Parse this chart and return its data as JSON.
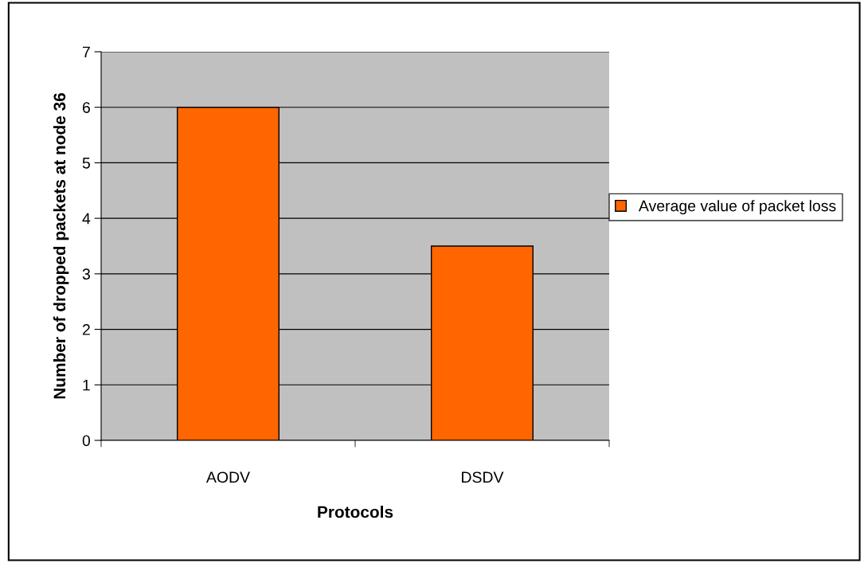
{
  "chart_data": {
    "type": "bar",
    "xlabel": "Protocols",
    "ylabel": "Number of dropped packets at node 36",
    "categories": [
      "AODV",
      "DSDV"
    ],
    "series": [
      {
        "name": "Average value of packet loss",
        "color": "#ff6600",
        "values": [
          6,
          3.5
        ]
      }
    ],
    "ylim": [
      0,
      7
    ],
    "yticks": [
      0,
      1,
      2,
      3,
      4,
      5,
      6,
      7
    ],
    "grid": "y",
    "legend": "right"
  }
}
